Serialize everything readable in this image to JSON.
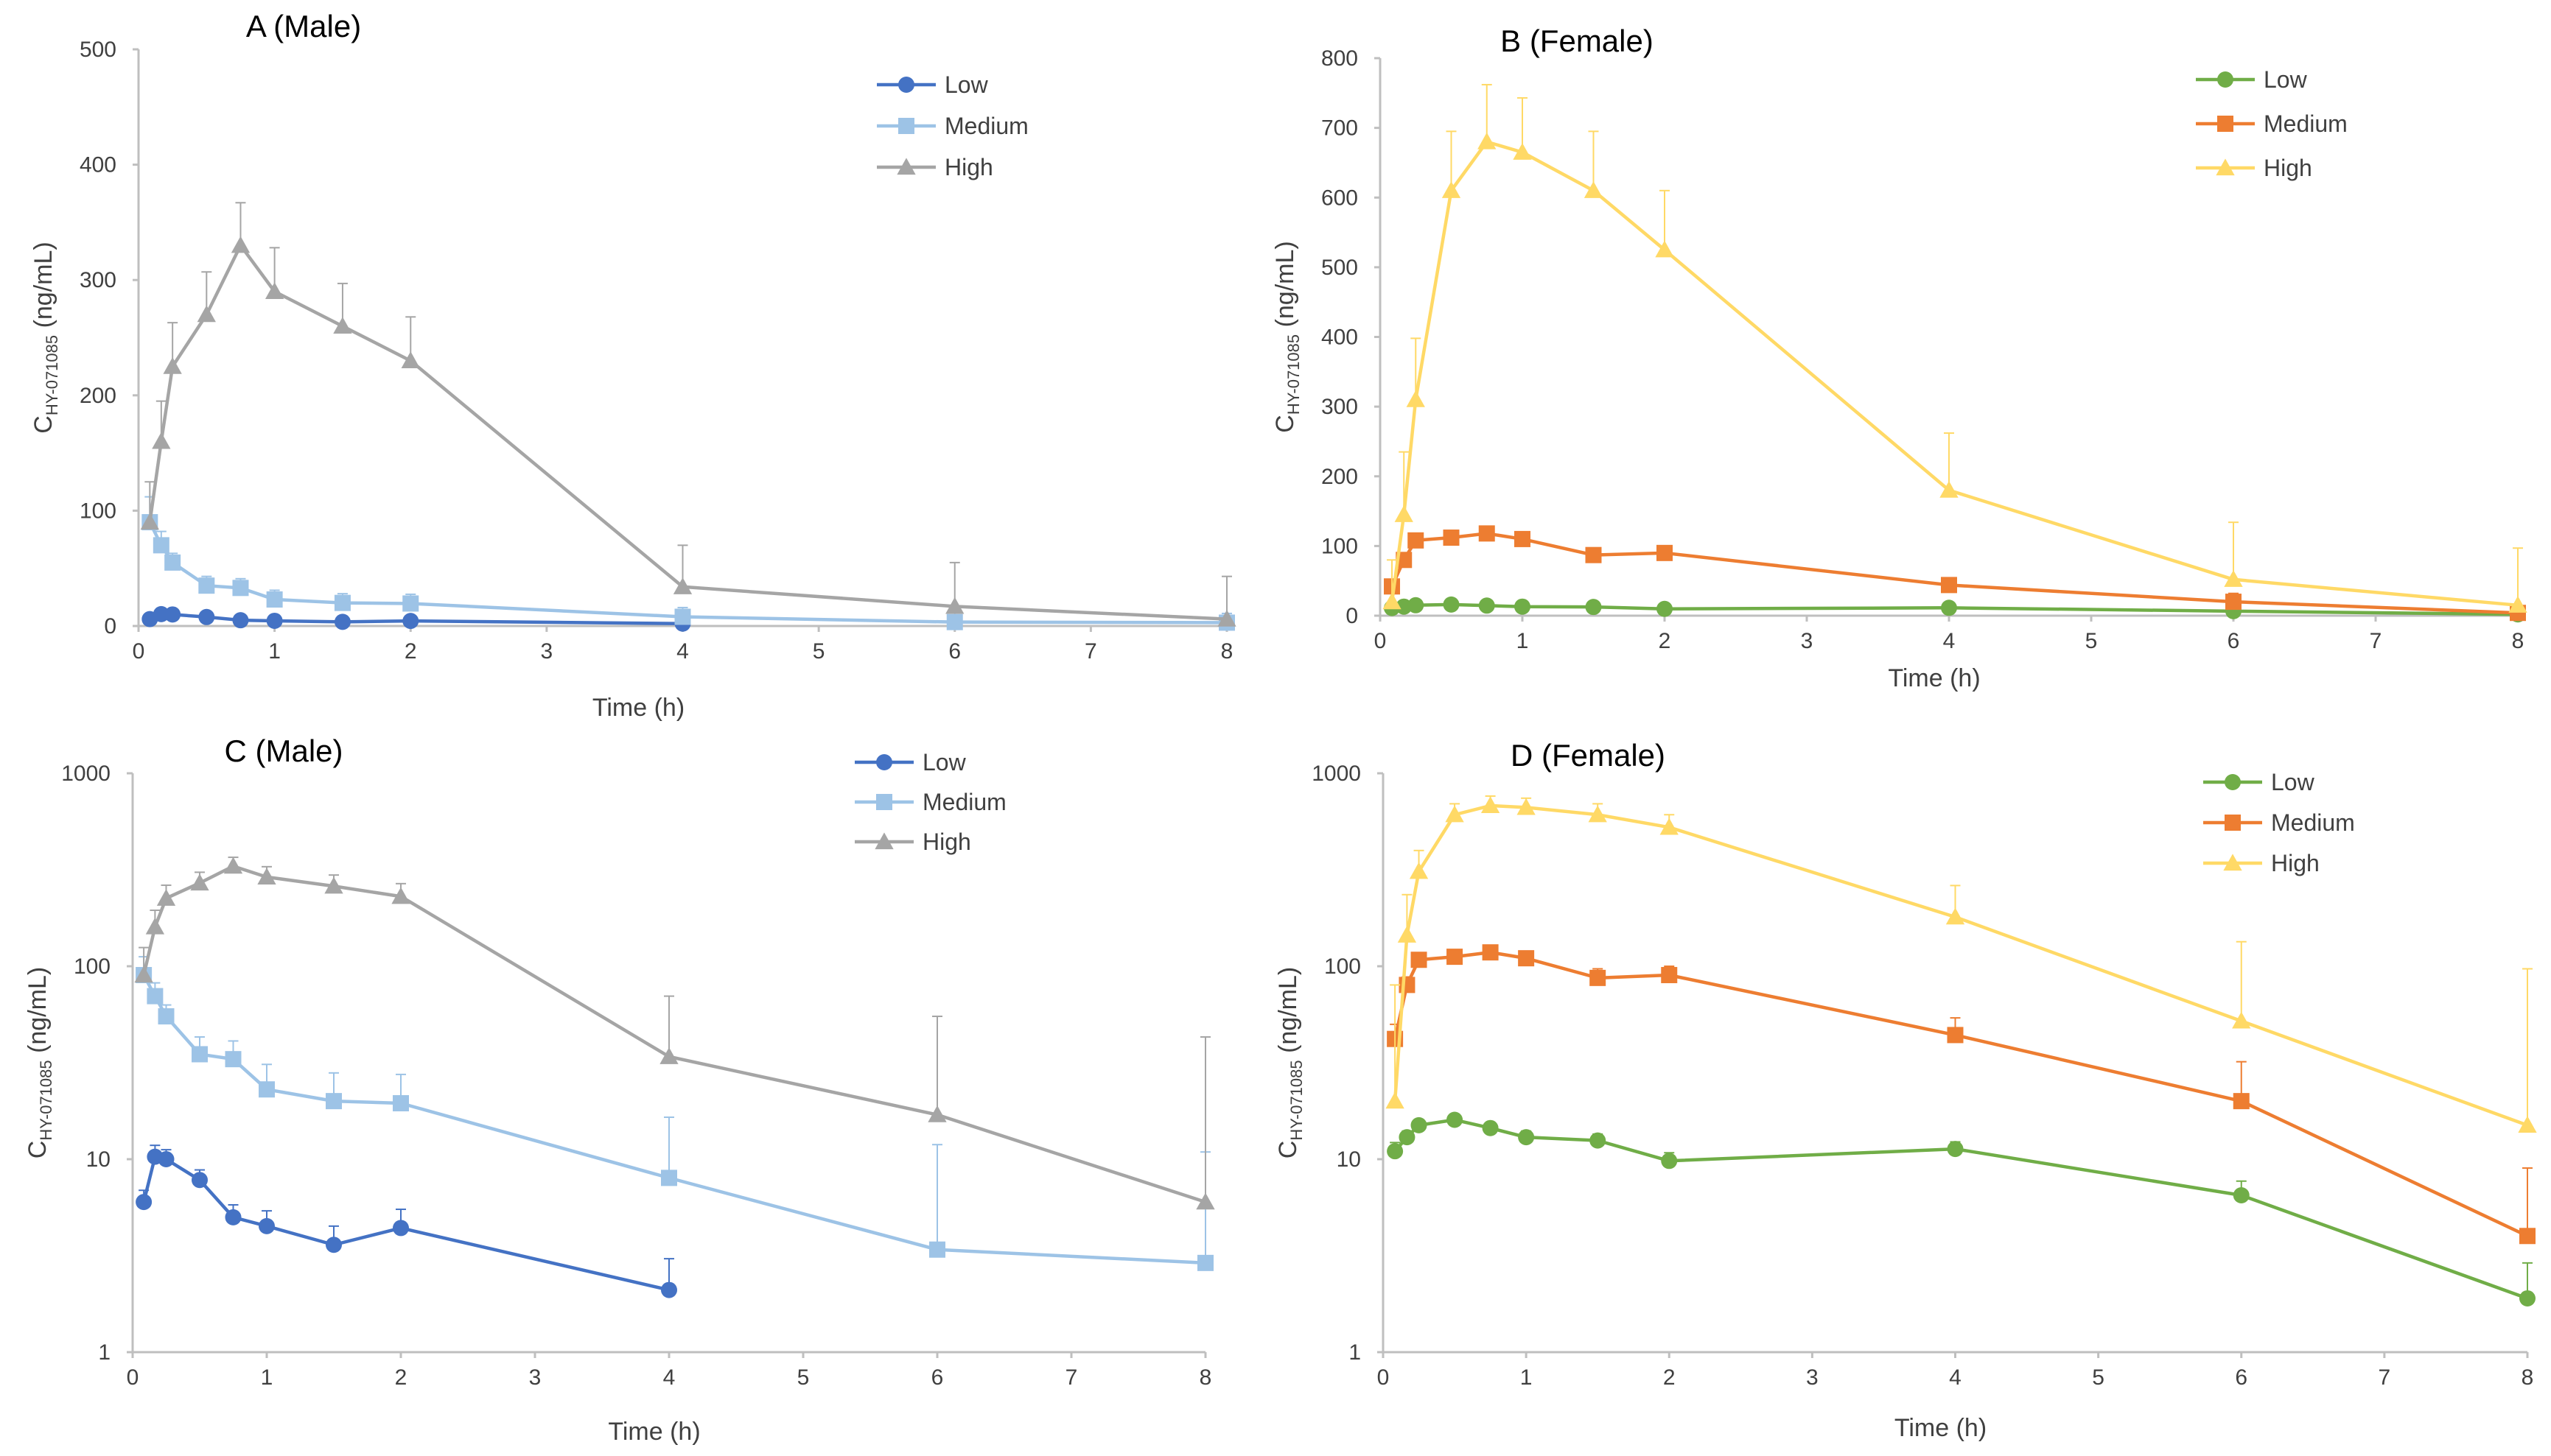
{
  "chart_data": [
    {
      "id": "A",
      "type": "line",
      "title": "A (Male)",
      "xlabel": "Time (h)",
      "ylabel": {
        "main": "C",
        "sub": "HY-071085",
        "unit": " (ng/mL)"
      },
      "yscale": "linear",
      "xlim": [
        0,
        8
      ],
      "ylim": [
        0,
        500
      ],
      "xticks": [
        "0",
        "1",
        "2",
        "3",
        "4",
        "5",
        "6",
        "7",
        "8"
      ],
      "yticks": [
        "0",
        "100",
        "200",
        "300",
        "400",
        "500"
      ],
      "legend_position": "top-right",
      "series": [
        {
          "name": "Low",
          "color": "#4472c4",
          "marker": "circle",
          "x": [
            0.083,
            0.167,
            0.25,
            0.5,
            0.75,
            1,
            1.5,
            2,
            4
          ],
          "y": [
            6,
            10.3,
            10,
            7.8,
            5,
            4.5,
            3.6,
            4.4,
            2.1
          ],
          "err": [
            0.9,
            1.5,
            1.2,
            1,
            0.8,
            0.9,
            0.9,
            1.1,
            0
          ]
        },
        {
          "name": "Medium",
          "color": "#9dc3e6",
          "marker": "square",
          "x": [
            0.083,
            0.167,
            0.25,
            0.5,
            0.75,
            1,
            1.5,
            2,
            4,
            6,
            8
          ],
          "y": [
            90,
            70,
            55,
            35,
            33,
            23,
            20,
            19.5,
            8,
            3.4,
            2.9
          ],
          "err": [
            22,
            12,
            8,
            8,
            8,
            8,
            8,
            8,
            8,
            8,
            8
          ]
        },
        {
          "name": "High",
          "color": "#a5a5a5",
          "marker": "triangle",
          "x": [
            0.083,
            0.167,
            0.25,
            0.5,
            0.75,
            1,
            1.5,
            2,
            4,
            6,
            8
          ],
          "y": [
            90,
            160,
            225,
            270,
            330,
            290,
            260,
            230,
            34,
            17,
            6
          ],
          "err": [
            35,
            35,
            38,
            37,
            37,
            38,
            37,
            38,
            36,
            38,
            37
          ]
        }
      ]
    },
    {
      "id": "B",
      "type": "line",
      "title": "B (Female)",
      "xlabel": "Time (h)",
      "ylabel": {
        "main": "C",
        "sub": "HY-071085",
        "unit": " (ng/mL)"
      },
      "yscale": "linear",
      "xlim": [
        0,
        8
      ],
      "ylim": [
        0,
        800
      ],
      "xticks": [
        "0",
        "1",
        "2",
        "3",
        "4",
        "5",
        "6",
        "7",
        "8"
      ],
      "yticks": [
        "0",
        "100",
        "200",
        "300",
        "400",
        "500",
        "600",
        "700",
        "800"
      ],
      "legend_position": "top-right",
      "series": [
        {
          "name": "Low",
          "color": "#70ad47",
          "marker": "circle",
          "x": [
            0.083,
            0.167,
            0.25,
            0.5,
            0.75,
            1,
            1.5,
            2,
            4,
            6,
            8
          ],
          "y": [
            11,
            13,
            15,
            16,
            14.5,
            13,
            12.5,
            9.8,
            11.3,
            6.5,
            1.9
          ],
          "err": [
            1.2,
            1,
            1,
            1,
            1,
            1,
            1,
            1,
            1,
            1.2,
            1
          ]
        },
        {
          "name": "Medium",
          "color": "#ed7d31",
          "marker": "square",
          "x": [
            0.083,
            0.167,
            0.25,
            0.5,
            0.75,
            1,
            1.5,
            2,
            4,
            6,
            8
          ],
          "y": [
            42,
            80,
            108,
            112,
            118,
            110,
            87,
            90,
            44,
            20,
            4
          ],
          "err": [
            8,
            8,
            8,
            8,
            8,
            8,
            10,
            10,
            10,
            12,
            5
          ]
        },
        {
          "name": "High",
          "color": "#ffd966",
          "marker": "triangle",
          "x": [
            0.083,
            0.167,
            0.25,
            0.5,
            0.75,
            1,
            1.5,
            2,
            4,
            6,
            8
          ],
          "y": [
            20,
            145,
            310,
            610,
            680,
            665,
            610,
            525,
            180,
            52,
            15
          ],
          "err": [
            60,
            90,
            88,
            85,
            82,
            78,
            85,
            85,
            82,
            82,
            82
          ]
        }
      ]
    },
    {
      "id": "C",
      "type": "line",
      "title": "C (Male)",
      "xlabel": "Time (h)",
      "ylabel": {
        "main": "C",
        "sub": "HY-071085",
        "unit": " (ng/mL)"
      },
      "yscale": "log",
      "xlim": [
        0,
        8
      ],
      "ylim": [
        1,
        1000
      ],
      "xticks": [
        "0",
        "1",
        "2",
        "3",
        "4",
        "5",
        "6",
        "7",
        "8"
      ],
      "yticks": [
        "1",
        "10",
        "100",
        "1000"
      ],
      "legend_position": "top-right",
      "series": [
        {
          "name": "Low",
          "color": "#4472c4",
          "marker": "circle",
          "x": [
            0.083,
            0.167,
            0.25,
            0.5,
            0.75,
            1,
            1.5,
            2,
            4
          ],
          "y": [
            6,
            10.3,
            10,
            7.8,
            5,
            4.5,
            3.6,
            4.4,
            2.1
          ],
          "err": [
            0.9,
            1.5,
            1.2,
            1,
            0.8,
            0.9,
            0.9,
            1.1,
            0.95
          ]
        },
        {
          "name": "Medium",
          "color": "#9dc3e6",
          "marker": "square",
          "x": [
            0.083,
            0.167,
            0.25,
            0.5,
            0.75,
            1,
            1.5,
            2,
            4,
            6,
            8
          ],
          "y": [
            90,
            70,
            55,
            35,
            33,
            23,
            20,
            19.5,
            8,
            3.4,
            2.9
          ],
          "err": [
            22,
            12,
            8,
            8,
            8,
            8,
            8,
            8,
            8.5,
            8.5,
            8
          ]
        },
        {
          "name": "High",
          "color": "#a5a5a5",
          "marker": "triangle",
          "x": [
            0.083,
            0.167,
            0.25,
            0.5,
            0.75,
            1,
            1.5,
            2,
            4,
            6,
            8
          ],
          "y": [
            90,
            160,
            225,
            270,
            330,
            290,
            260,
            230,
            34,
            17,
            6
          ],
          "err": [
            35,
            35,
            38,
            37,
            37,
            38,
            37,
            38,
            36,
            38,
            37
          ]
        }
      ]
    },
    {
      "id": "D",
      "type": "line",
      "title": "D (Female)",
      "xlabel": "Time (h)",
      "ylabel": {
        "main": "C",
        "sub": "HY-071085",
        "unit": " (ng/mL)"
      },
      "yscale": "log",
      "xlim": [
        0,
        8
      ],
      "ylim": [
        1,
        1000
      ],
      "xticks": [
        "0",
        "1",
        "2",
        "3",
        "4",
        "5",
        "6",
        "7",
        "8"
      ],
      "yticks": [
        "1",
        "10",
        "100",
        "1000"
      ],
      "legend_position": "top-right",
      "series": [
        {
          "name": "Low",
          "color": "#70ad47",
          "marker": "circle",
          "x": [
            0.083,
            0.167,
            0.25,
            0.5,
            0.75,
            1,
            1.5,
            2,
            4,
            6,
            8
          ],
          "y": [
            11,
            13,
            15,
            16,
            14.5,
            13,
            12.5,
            9.8,
            11.3,
            6.5,
            1.9
          ],
          "err": [
            1.2,
            1,
            1,
            1,
            1,
            1,
            1,
            1,
            1,
            1.2,
            1
          ]
        },
        {
          "name": "Medium",
          "color": "#ed7d31",
          "marker": "square",
          "x": [
            0.083,
            0.167,
            0.25,
            0.5,
            0.75,
            1,
            1.5,
            2,
            4,
            6,
            8
          ],
          "y": [
            42,
            80,
            108,
            112,
            118,
            110,
            87,
            90,
            44,
            20,
            4
          ],
          "err": [
            8,
            8,
            8,
            8,
            8,
            8,
            10,
            10,
            10,
            12,
            5
          ]
        },
        {
          "name": "High",
          "color": "#ffd966",
          "marker": "triangle",
          "x": [
            0.083,
            0.167,
            0.25,
            0.5,
            0.75,
            1,
            1.5,
            2,
            4,
            6,
            8
          ],
          "y": [
            20,
            145,
            310,
            610,
            680,
            665,
            610,
            525,
            180,
            52,
            15
          ],
          "err": [
            60,
            90,
            88,
            85,
            82,
            78,
            85,
            85,
            82,
            82,
            82
          ]
        }
      ]
    }
  ]
}
